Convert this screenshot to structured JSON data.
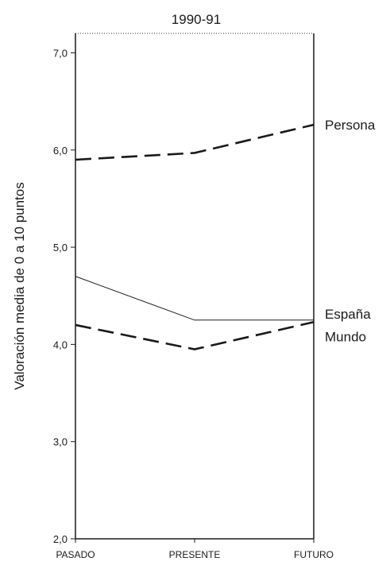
{
  "chart_data": {
    "type": "line",
    "title": "1990-91",
    "xlabel": "",
    "ylabel": "Valoración media de 0 a 10 puntos",
    "categories": [
      "PASADO",
      "PRESENTE",
      "FUTURO"
    ],
    "ylim": [
      2.0,
      7.2
    ],
    "yticks": [
      "2,0",
      "3,0",
      "4,0",
      "5,0",
      "6,0",
      "7,0"
    ],
    "grid": false,
    "legend": "right, labels at line ends",
    "series": [
      {
        "name": "Persona",
        "values": [
          5.9,
          5.97,
          6.26
        ],
        "style": "dashed-bold",
        "color": "#1a1a1a"
      },
      {
        "name": "España",
        "values": [
          4.7,
          4.25,
          4.25
        ],
        "style": "solid-thin",
        "color": "#1a1a1a"
      },
      {
        "name": "Mundo",
        "values": [
          4.2,
          3.95,
          4.23
        ],
        "style": "dashed-bold",
        "color": "#1a1a1a"
      }
    ]
  }
}
